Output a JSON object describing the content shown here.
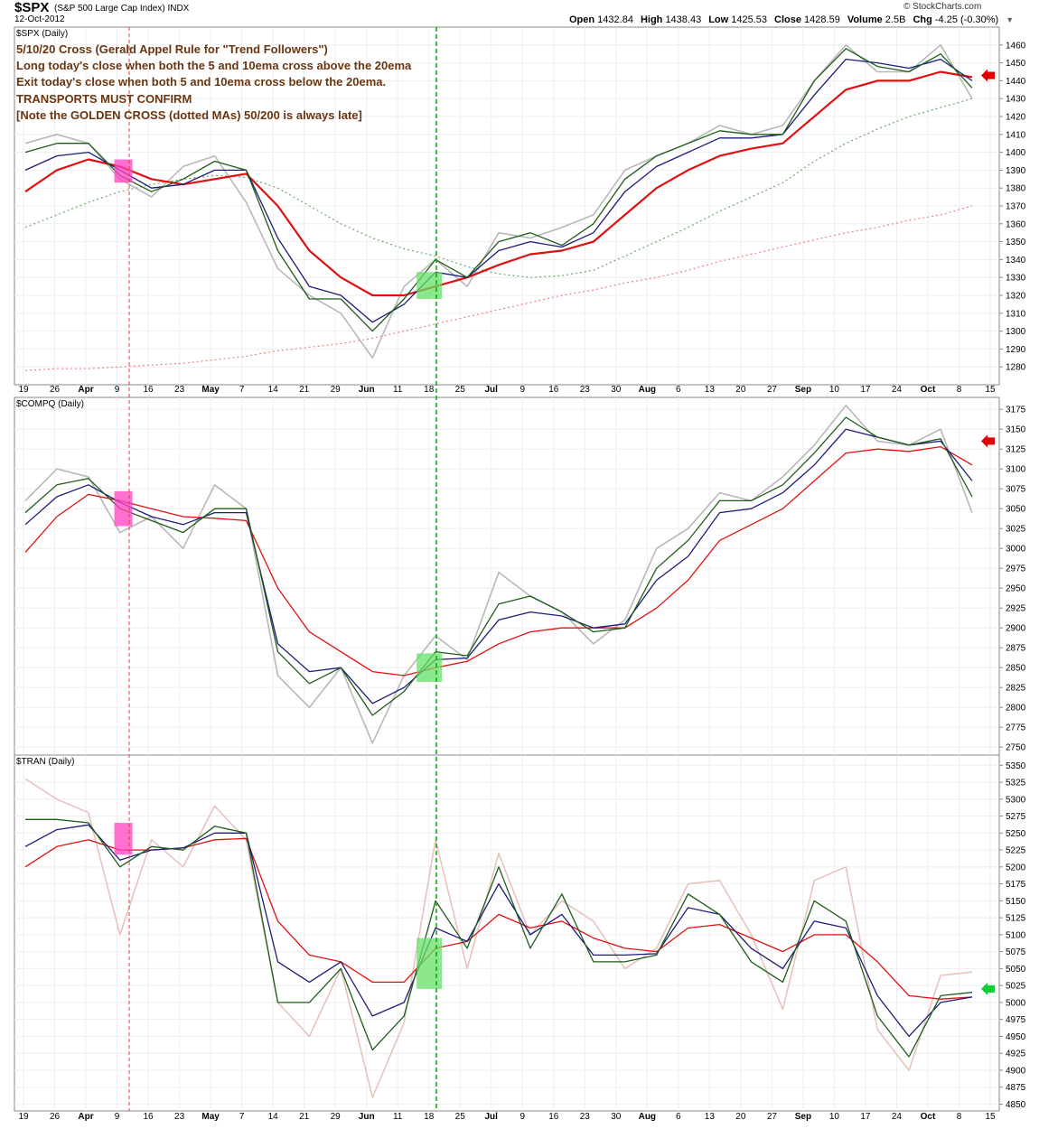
{
  "header": {
    "symbol": "$SPX",
    "description": "(S&P 500 Large Cap Index) INDX",
    "date": "12-Oct-2012",
    "brand": "© StockCharts.com",
    "quote": [
      {
        "label": "Open",
        "value": "1432.84"
      },
      {
        "label": "High",
        "value": "1438.43"
      },
      {
        "label": "Low",
        "value": "1425.53"
      },
      {
        "label": "Close",
        "value": "1428.59"
      },
      {
        "label": "Volume",
        "value": "2.5B"
      },
      {
        "label": "Chg",
        "value": "-4.25 (-0.30%)"
      }
    ]
  },
  "annotation": [
    "5/10/20 Cross (Gerald Appel Rule for \"Trend Followers\")",
    "Long today's close when both the 5 and 10ema cross above the 20ema",
    "Exit today's close when both 5 and 10ema cross below the 20ema.",
    "TRANSPORTS MUST CONFIRM",
    "[Note the GOLDEN CROSS (dotted MAs) 50/200 is always late]"
  ],
  "x_labels": [
    {
      "label": "19",
      "bold": false
    },
    {
      "label": "26",
      "bold": false
    },
    {
      "label": "Apr",
      "bold": true
    },
    {
      "label": "9",
      "bold": false
    },
    {
      "label": "16",
      "bold": false
    },
    {
      "label": "23",
      "bold": false
    },
    {
      "label": "May",
      "bold": true
    },
    {
      "label": "7",
      "bold": false
    },
    {
      "label": "14",
      "bold": false
    },
    {
      "label": "21",
      "bold": false
    },
    {
      "label": "29",
      "bold": false
    },
    {
      "label": "Jun",
      "bold": true
    },
    {
      "label": "11",
      "bold": false
    },
    {
      "label": "18",
      "bold": false
    },
    {
      "label": "25",
      "bold": false
    },
    {
      "label": "Jul",
      "bold": true
    },
    {
      "label": "9",
      "bold": false
    },
    {
      "label": "16",
      "bold": false
    },
    {
      "label": "23",
      "bold": false
    },
    {
      "label": "30",
      "bold": false
    },
    {
      "label": "Aug",
      "bold": true
    },
    {
      "label": "6",
      "bold": false
    },
    {
      "label": "13",
      "bold": false
    },
    {
      "label": "20",
      "bold": false
    },
    {
      "label": "27",
      "bold": false
    },
    {
      "label": "Sep",
      "bold": true
    },
    {
      "label": "10",
      "bold": false
    },
    {
      "label": "17",
      "bold": false
    },
    {
      "label": "24",
      "bold": false
    },
    {
      "label": "Oct",
      "bold": true
    },
    {
      "label": "8",
      "bold": false
    },
    {
      "label": "15",
      "bold": false
    }
  ],
  "colors": {
    "close": "#b8b8b8",
    "close_tran": "#e6c4bd",
    "ema5": "#1f5c1a",
    "ema10": "#1c1c7a",
    "ema20": "#e01010",
    "sma50": "#6aa86a",
    "sma200": "#f08080",
    "sell_box": "#ff40c0",
    "buy_box": "#66e066",
    "red_marker": "#e00000",
    "green_marker": "#11cc33"
  },
  "chart_data": [
    {
      "type": "line",
      "title": "$SPX (Daily)",
      "ylim": [
        1270,
        1470
      ],
      "yticks": [
        1280,
        1290,
        1300,
        1310,
        1320,
        1330,
        1340,
        1350,
        1360,
        1370,
        1380,
        1390,
        1400,
        1410,
        1420,
        1430,
        1440,
        1450,
        1460
      ],
      "arrow": {
        "direction": "left",
        "color": "red",
        "value": 1443
      },
      "x": [
        "Mar 19",
        "Mar 26",
        "Apr 2",
        "Apr 9",
        "Apr 16",
        "Apr 23",
        "Apr 30",
        "May 7",
        "May 14",
        "May 21",
        "May 29",
        "Jun 4",
        "Jun 11",
        "Jun 18",
        "Jun 25",
        "Jul 2",
        "Jul 9",
        "Jul 16",
        "Jul 23",
        "Jul 30",
        "Aug 6",
        "Aug 13",
        "Aug 20",
        "Aug 27",
        "Sep 4",
        "Sep 10",
        "Sep 17",
        "Sep 24",
        "Oct 1",
        "Oct 8",
        "Oct 15"
      ],
      "series": [
        {
          "name": "Close",
          "role": "close",
          "values": [
            1405,
            1410,
            1405,
            1385,
            1375,
            1392,
            1398,
            1372,
            1335,
            1320,
            1310,
            1285,
            1325,
            1340,
            1325,
            1355,
            1352,
            1358,
            1365,
            1390,
            1398,
            1405,
            1415,
            1410,
            1415,
            1440,
            1460,
            1445,
            1445,
            1460,
            1430
          ]
        },
        {
          "name": "EMA(5)",
          "role": "ema5",
          "values": [
            1400,
            1405,
            1405,
            1387,
            1378,
            1385,
            1395,
            1390,
            1345,
            1318,
            1318,
            1300,
            1318,
            1340,
            1330,
            1350,
            1355,
            1348,
            1360,
            1385,
            1398,
            1405,
            1412,
            1410,
            1410,
            1440,
            1458,
            1448,
            1445,
            1455,
            1436
          ]
        },
        {
          "name": "EMA(10)",
          "role": "ema10",
          "values": [
            1390,
            1398,
            1400,
            1390,
            1380,
            1382,
            1390,
            1390,
            1352,
            1325,
            1320,
            1305,
            1315,
            1333,
            1330,
            1345,
            1350,
            1347,
            1355,
            1378,
            1392,
            1400,
            1408,
            1408,
            1410,
            1432,
            1452,
            1450,
            1447,
            1452,
            1440
          ]
        },
        {
          "name": "EMA(20)",
          "role": "ema20",
          "values": [
            1378,
            1390,
            1396,
            1392,
            1385,
            1382,
            1385,
            1388,
            1370,
            1345,
            1330,
            1320,
            1320,
            1325,
            1330,
            1337,
            1343,
            1345,
            1350,
            1365,
            1380,
            1390,
            1398,
            1402,
            1405,
            1420,
            1435,
            1440,
            1440,
            1445,
            1442
          ]
        },
        {
          "name": "SMA(50)",
          "role": "sma50",
          "values": [
            1358,
            1365,
            1372,
            1378,
            1382,
            1385,
            1387,
            1386,
            1380,
            1370,
            1360,
            1352,
            1346,
            1342,
            1336,
            1332,
            1330,
            1331,
            1334,
            1342,
            1350,
            1358,
            1367,
            1375,
            1383,
            1395,
            1405,
            1413,
            1420,
            1425,
            1430
          ]
        },
        {
          "name": "SMA(200)",
          "role": "sma200",
          "values": [
            1278,
            1279,
            1279,
            1280,
            1281,
            1282,
            1284,
            1286,
            1289,
            1291,
            1293,
            1296,
            1300,
            1304,
            1308,
            1312,
            1316,
            1320,
            1323,
            1327,
            1330,
            1334,
            1339,
            1343,
            1347,
            1351,
            1355,
            1358,
            1362,
            1365,
            1370
          ]
        }
      ]
    },
    {
      "type": "line",
      "title": "$COMPQ (Daily)",
      "ylim": [
        2740,
        3190
      ],
      "yticks": [
        2750,
        2775,
        2800,
        2825,
        2850,
        2875,
        2900,
        2925,
        2950,
        2975,
        3000,
        3025,
        3050,
        3075,
        3100,
        3125,
        3150,
        3175
      ],
      "arrow": {
        "direction": "left",
        "color": "red",
        "value": 3135
      },
      "x": [
        "Mar 19",
        "Mar 26",
        "Apr 2",
        "Apr 9",
        "Apr 16",
        "Apr 23",
        "Apr 30",
        "May 7",
        "May 14",
        "May 21",
        "May 29",
        "Jun 4",
        "Jun 11",
        "Jun 18",
        "Jun 25",
        "Jul 2",
        "Jul 9",
        "Jul 16",
        "Jul 23",
        "Jul 30",
        "Aug 6",
        "Aug 13",
        "Aug 20",
        "Aug 27",
        "Sep 4",
        "Sep 10",
        "Sep 17",
        "Sep 24",
        "Oct 1",
        "Oct 8",
        "Oct 15"
      ],
      "series": [
        {
          "name": "Close",
          "role": "close",
          "values": [
            3060,
            3100,
            3090,
            3020,
            3040,
            3000,
            3080,
            3050,
            2840,
            2800,
            2850,
            2755,
            2840,
            2890,
            2860,
            2970,
            2940,
            2920,
            2880,
            2910,
            3000,
            3025,
            3070,
            3060,
            3090,
            3130,
            3180,
            3135,
            3130,
            3150,
            3045
          ]
        },
        {
          "name": "EMA(5)",
          "role": "ema5",
          "values": [
            3045,
            3080,
            3088,
            3050,
            3035,
            3020,
            3050,
            3050,
            2870,
            2830,
            2850,
            2790,
            2820,
            2870,
            2865,
            2930,
            2940,
            2920,
            2895,
            2900,
            2975,
            3010,
            3060,
            3060,
            3080,
            3120,
            3165,
            3140,
            3130,
            3138,
            3065
          ]
        },
        {
          "name": "EMA(10)",
          "role": "ema10",
          "values": [
            3030,
            3065,
            3080,
            3058,
            3040,
            3030,
            3045,
            3045,
            2880,
            2845,
            2850,
            2805,
            2825,
            2860,
            2862,
            2910,
            2920,
            2915,
            2900,
            2905,
            2960,
            2990,
            3045,
            3050,
            3070,
            3105,
            3150,
            3140,
            3130,
            3135,
            3085
          ]
        },
        {
          "name": "EMA(20)",
          "role": "ema20",
          "values": [
            2995,
            3040,
            3068,
            3060,
            3050,
            3040,
            3038,
            3035,
            2950,
            2895,
            2870,
            2845,
            2840,
            2850,
            2858,
            2880,
            2895,
            2900,
            2900,
            2900,
            2925,
            2960,
            3010,
            3030,
            3050,
            3085,
            3120,
            3125,
            3122,
            3128,
            3105
          ]
        }
      ]
    },
    {
      "type": "line",
      "title": "$TRAN (Daily)",
      "ylim": [
        4840,
        5365
      ],
      "yticks": [
        4850,
        4875,
        4900,
        4925,
        4950,
        4975,
        5000,
        5025,
        5050,
        5075,
        5100,
        5125,
        5150,
        5175,
        5200,
        5225,
        5250,
        5275,
        5300,
        5325,
        5350
      ],
      "arrow": {
        "direction": "left",
        "color": "green",
        "value": 5020
      },
      "x": [
        "Mar 19",
        "Mar 26",
        "Apr 2",
        "Apr 9",
        "Apr 16",
        "Apr 23",
        "Apr 30",
        "May 7",
        "May 14",
        "May 21",
        "May 29",
        "Jun 4",
        "Jun 11",
        "Jun 18",
        "Jun 25",
        "Jul 2",
        "Jul 9",
        "Jul 16",
        "Jul 23",
        "Jul 30",
        "Aug 6",
        "Aug 13",
        "Aug 20",
        "Aug 27",
        "Sep 4",
        "Sep 10",
        "Sep 17",
        "Sep 24",
        "Oct 1",
        "Oct 8",
        "Oct 15"
      ],
      "series": [
        {
          "name": "Close",
          "role": "close",
          "values": [
            5330,
            5300,
            5280,
            5100,
            5240,
            5200,
            5290,
            5240,
            5000,
            4950,
            5050,
            4860,
            4970,
            5240,
            5050,
            5220,
            5100,
            5150,
            5120,
            5050,
            5080,
            5175,
            5180,
            5100,
            4990,
            5180,
            5200,
            4960,
            4900,
            5040,
            5045
          ]
        },
        {
          "name": "EMA(5)",
          "role": "ema5",
          "values": [
            5270,
            5270,
            5265,
            5200,
            5230,
            5225,
            5260,
            5250,
            5000,
            5000,
            5050,
            4930,
            4980,
            5150,
            5080,
            5200,
            5080,
            5160,
            5060,
            5060,
            5070,
            5160,
            5130,
            5060,
            5030,
            5150,
            5120,
            4980,
            4920,
            5010,
            5015
          ]
        },
        {
          "name": "EMA(10)",
          "role": "ema10",
          "values": [
            5230,
            5255,
            5262,
            5210,
            5225,
            5228,
            5250,
            5250,
            5060,
            5030,
            5060,
            4980,
            5000,
            5110,
            5090,
            5175,
            5100,
            5130,
            5070,
            5070,
            5072,
            5140,
            5130,
            5080,
            5050,
            5120,
            5110,
            5010,
            4950,
            5000,
            5008
          ]
        },
        {
          "name": "EMA(20)",
          "role": "ema20",
          "values": [
            5200,
            5230,
            5240,
            5225,
            5225,
            5228,
            5240,
            5242,
            5120,
            5070,
            5060,
            5030,
            5030,
            5080,
            5090,
            5130,
            5110,
            5120,
            5095,
            5080,
            5075,
            5110,
            5115,
            5095,
            5075,
            5100,
            5100,
            5060,
            5010,
            5005,
            5008
          ]
        }
      ]
    }
  ]
}
